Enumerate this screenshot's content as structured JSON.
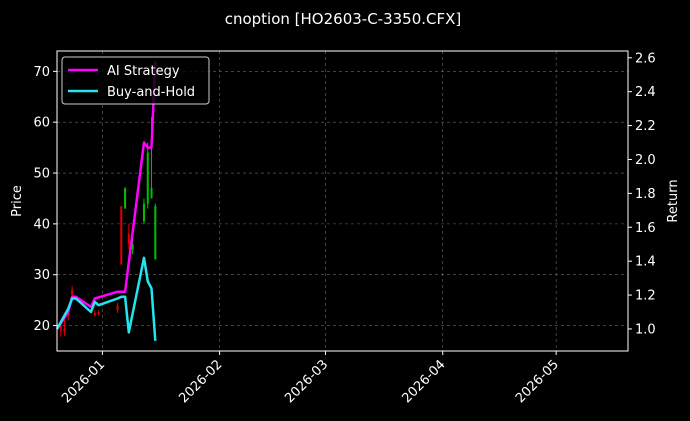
{
  "chart_data": {
    "type": "line",
    "title": "cnoption [HO2603-C-3350.CFX]",
    "ylabel": "Price",
    "y2label": "Return",
    "xlim": [
      "2025-12-20",
      "2026-05-20"
    ],
    "ylim": [
      15,
      74
    ],
    "y2lim": [
      0.87,
      2.64
    ],
    "x_ticks": [
      "2026-01",
      "2026-02",
      "2026-03",
      "2026-04",
      "2026-05"
    ],
    "y_ticks": [
      "20",
      "30",
      "40",
      "50",
      "60",
      "70"
    ],
    "y2_ticks": [
      "1.0",
      "1.2",
      "1.4",
      "1.6",
      "1.8",
      "2.0",
      "2.2",
      "2.4",
      "2.6"
    ],
    "grid": true,
    "legend_position": "top-left",
    "background": "#000000",
    "series": [
      {
        "name": "AI Strategy",
        "axis": "right",
        "color": "#ff00ff",
        "points": [
          [
            "2025-12-20",
            1.0
          ],
          [
            "2025-12-23",
            1.1
          ],
          [
            "2025-12-24",
            1.19
          ],
          [
            "2025-12-25",
            1.19
          ],
          [
            "2025-12-29",
            1.13
          ],
          [
            "2025-12-30",
            1.18
          ],
          [
            "2026-01-05",
            1.22
          ],
          [
            "2026-01-06",
            1.22
          ],
          [
            "2026-01-07",
            1.22
          ],
          [
            "2026-01-12",
            2.1
          ],
          [
            "2026-01-13",
            2.07
          ],
          [
            "2026-01-14",
            2.07
          ],
          [
            "2026-01-15",
            2.58
          ]
        ]
      },
      {
        "name": "Buy-and-Hold",
        "axis": "right",
        "color": "#22e5ee",
        "points": [
          [
            "2025-12-20",
            1.0
          ],
          [
            "2025-12-23",
            1.12
          ],
          [
            "2025-12-24",
            1.18
          ],
          [
            "2025-12-25",
            1.18
          ],
          [
            "2025-12-29",
            1.1
          ],
          [
            "2025-12-30",
            1.16
          ],
          [
            "2025-12-31",
            1.14
          ],
          [
            "2026-01-05",
            1.18
          ],
          [
            "2026-01-06",
            1.19
          ],
          [
            "2026-01-07",
            1.19
          ],
          [
            "2026-01-08",
            0.98
          ],
          [
            "2026-01-09",
            1.09
          ],
          [
            "2026-01-12",
            1.42
          ],
          [
            "2026-01-13",
            1.28
          ],
          [
            "2026-01-14",
            1.24
          ],
          [
            "2026-01-15",
            0.93
          ]
        ]
      }
    ],
    "candles": {
      "up_color": "#00c000",
      "down_color": "#e00000",
      "items": [
        {
          "date": "2025-12-21",
          "open": 20.5,
          "close": 19.0,
          "high": 21.2,
          "low": 17.8
        },
        {
          "date": "2025-12-22",
          "open": 19.5,
          "close": 18.8,
          "high": 22.5,
          "low": 18.0
        },
        {
          "date": "2025-12-23",
          "open": 23.0,
          "close": 22.0,
          "high": 24.0,
          "low": 21.0
        },
        {
          "date": "2025-12-24",
          "open": 27.0,
          "close": 26.0,
          "high": 27.8,
          "low": 25.5
        },
        {
          "date": "2025-12-30",
          "open": 22.5,
          "close": 22.0,
          "high": 23.0,
          "low": 21.8
        },
        {
          "date": "2025-12-31",
          "open": 22.6,
          "close": 22.3,
          "high": 23.0,
          "low": 22.0
        },
        {
          "date": "2026-01-05",
          "open": 24.0,
          "close": 23.0,
          "high": 24.5,
          "low": 22.5
        },
        {
          "date": "2026-01-06",
          "open": 43.5,
          "close": 32.0,
          "high": 43.5,
          "low": 32.0
        },
        {
          "date": "2026-01-07",
          "open": 43.0,
          "close": 47.0,
          "high": 47.2,
          "low": 43.0
        },
        {
          "date": "2026-01-08",
          "open": 38.0,
          "close": 36.0,
          "high": 40.0,
          "low": 35.0
        },
        {
          "date": "2026-01-09",
          "open": 35.0,
          "close": 36.0,
          "high": 38.0,
          "low": 34.0
        },
        {
          "date": "2026-01-12",
          "open": 40.5,
          "close": 44.0,
          "high": 45.0,
          "low": 40.0
        },
        {
          "date": "2026-01-13",
          "open": 44.0,
          "close": 54.0,
          "high": 56.0,
          "low": 43.0
        },
        {
          "date": "2026-01-14",
          "open": 45.0,
          "close": 47.0,
          "high": 61.0,
          "low": 45.0
        },
        {
          "date": "2026-01-15",
          "open": 33.0,
          "close": 43.5,
          "high": 44.0,
          "low": 33.0
        }
      ]
    }
  }
}
